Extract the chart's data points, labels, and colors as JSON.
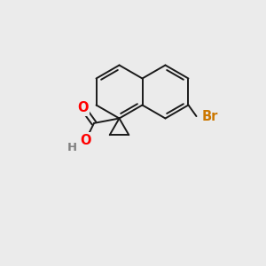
{
  "bg_color": "#ebebeb",
  "bond_color": "#1a1a1a",
  "bond_width": 1.4,
  "atom_colors": {
    "O": "#ff0000",
    "Br": "#cc7700",
    "H": "#808080"
  },
  "font_size": 10.5
}
